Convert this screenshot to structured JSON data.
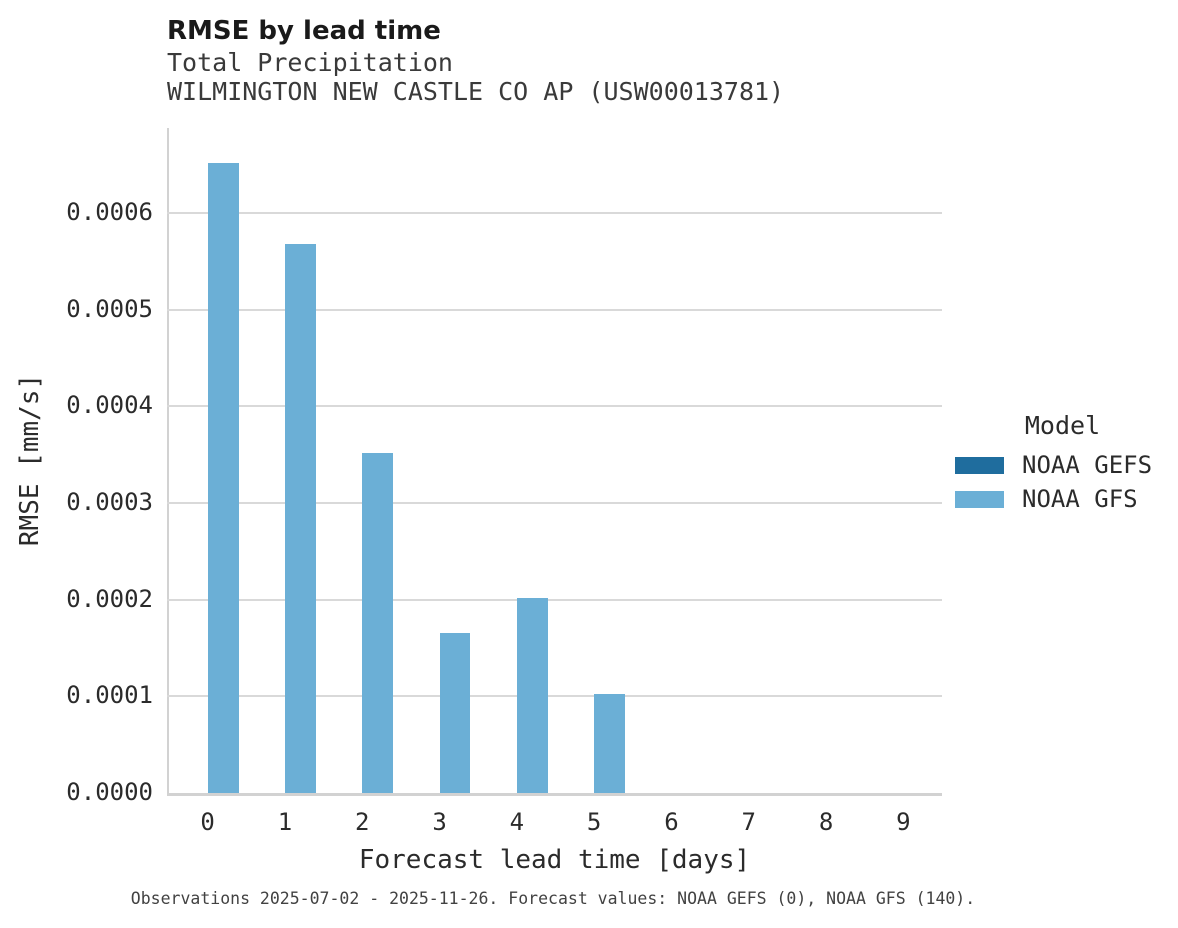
{
  "header": {
    "title": "RMSE by lead time",
    "subtitle_variable": "Total Precipitation",
    "subtitle_station": "WILMINGTON NEW CASTLE CO AP (USW00013781)"
  },
  "chart_data": {
    "type": "bar",
    "title": "RMSE by lead time",
    "subtitle": [
      "Total Precipitation",
      "WILMINGTON NEW CASTLE CO AP (USW00013781)"
    ],
    "xlabel": "Forecast lead time [days]",
    "ylabel": "RMSE [mm/s]",
    "categories": [
      0,
      1,
      2,
      3,
      4,
      5,
      6,
      7,
      8,
      9
    ],
    "series": [
      {
        "name": "NOAA GEFS",
        "color": "#1f6d9e",
        "values": [
          0,
          0,
          0,
          0,
          0,
          0,
          0,
          0,
          0,
          0
        ]
      },
      {
        "name": "NOAA GFS",
        "color": "#6bafd6",
        "values": [
          0.000652,
          0.000568,
          0.000352,
          0.000166,
          0.000202,
          0.000102,
          0,
          0,
          0,
          0
        ]
      }
    ],
    "yticks": [
      0.0,
      0.0001,
      0.0002,
      0.0003,
      0.0004,
      0.0005,
      0.0006
    ],
    "ylim": [
      0,
      0.000688
    ],
    "grid": "horizontal",
    "legend_title": "Model",
    "legend_position": "right",
    "colors": {
      "grid": "#d9d9d9",
      "spine": "#d2d2d2",
      "text": "#2b2b2b"
    }
  },
  "footer": {
    "note": "Observations 2025-07-02 - 2025-11-26. Forecast values: NOAA GEFS (0), NOAA GFS (140)."
  }
}
